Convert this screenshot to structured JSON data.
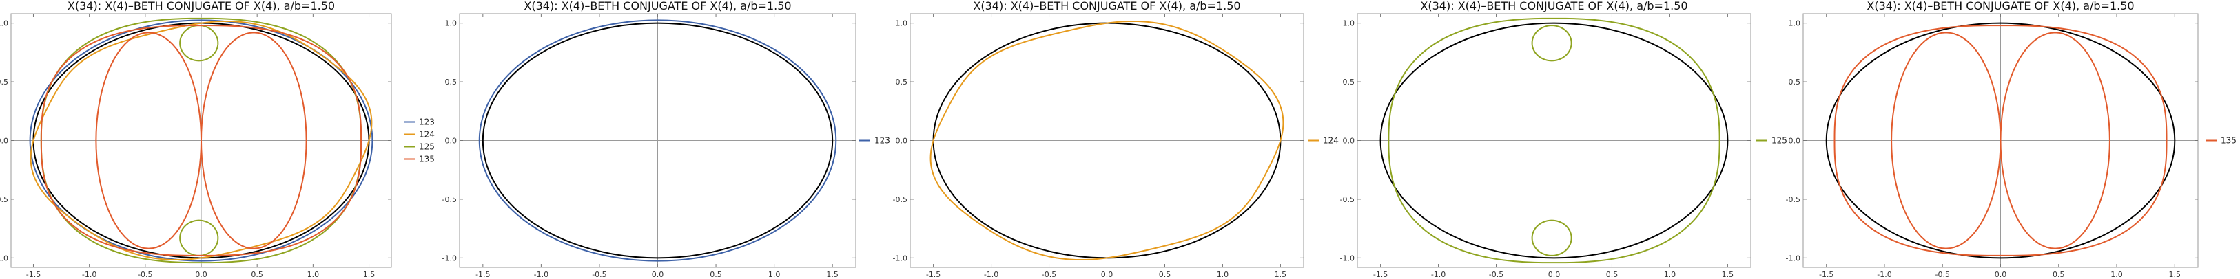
{
  "chart_data": [
    {
      "type": "line",
      "title": "X(34): X(4)–BETH CONJUGATE OF X(4), a/b=1.50",
      "xlabel": "",
      "ylabel": "",
      "xlim": [
        -1.7,
        1.7
      ],
      "ylim": [
        -1.08,
        1.08
      ],
      "x_ticks": [
        "-1.5",
        "-1.0",
        "-0.5",
        "0.0",
        "0.5",
        "1.0",
        "1.5"
      ],
      "y_ticks": [
        "-1.0",
        "-0.5",
        "0.0",
        "0.5",
        "1.0"
      ],
      "legend_position": "right",
      "reference_ellipse": {
        "a": 1.5,
        "b": 1.0,
        "color": "#000000"
      },
      "series": [
        {
          "name": "123",
          "color": "#3E62A8"
        },
        {
          "name": "124",
          "color": "#E69A1C"
        },
        {
          "name": "125",
          "color": "#8FA420"
        },
        {
          "name": "135",
          "color": "#E25B2C"
        }
      ]
    },
    {
      "type": "line",
      "title": "X(34): X(4)–BETH CONJUGATE OF X(4), a/b=1.50",
      "xlabel": "",
      "ylabel": "",
      "xlim": [
        -1.7,
        1.7
      ],
      "ylim": [
        -1.08,
        1.08
      ],
      "x_ticks": [
        "-1.5",
        "-1.0",
        "-0.5",
        "0.0",
        "0.5",
        "1.0",
        "1.5"
      ],
      "y_ticks": [
        "-1.0",
        "-0.5",
        "0.0",
        "0.5",
        "1.0"
      ],
      "legend_position": "right",
      "reference_ellipse": {
        "a": 1.5,
        "b": 1.0,
        "color": "#000000"
      },
      "series": [
        {
          "name": "123",
          "color": "#3E62A8"
        }
      ]
    },
    {
      "type": "line",
      "title": "X(34): X(4)–BETH CONJUGATE OF X(4), a/b=1.50",
      "xlabel": "",
      "ylabel": "",
      "xlim": [
        -1.7,
        1.7
      ],
      "ylim": [
        -1.08,
        1.08
      ],
      "x_ticks": [
        "-1.5",
        "-1.0",
        "-0.5",
        "0.0",
        "0.5",
        "1.0",
        "1.5"
      ],
      "y_ticks": [
        "-1.0",
        "-0.5",
        "0.0",
        "0.5",
        "1.0"
      ],
      "legend_position": "right",
      "reference_ellipse": {
        "a": 1.5,
        "b": 1.0,
        "color": "#000000"
      },
      "series": [
        {
          "name": "124",
          "color": "#E69A1C"
        }
      ]
    },
    {
      "type": "line",
      "title": "X(34): X(4)–BETH CONJUGATE OF X(4), a/b=1.50",
      "xlabel": "",
      "ylabel": "",
      "xlim": [
        -1.7,
        1.7
      ],
      "ylim": [
        -1.08,
        1.08
      ],
      "x_ticks": [
        "-1.5",
        "-1.0",
        "-0.5",
        "0.0",
        "0.5",
        "1.0",
        "1.5"
      ],
      "y_ticks": [
        "-1.0",
        "-0.5",
        "0.0",
        "0.5",
        "1.0"
      ],
      "legend_position": "right",
      "reference_ellipse": {
        "a": 1.5,
        "b": 1.0,
        "color": "#000000"
      },
      "series": [
        {
          "name": "125",
          "color": "#8FA420"
        }
      ]
    },
    {
      "type": "line",
      "title": "X(34): X(4)–BETH CONJUGATE OF X(4), a/b=1.50",
      "xlabel": "",
      "ylabel": "",
      "xlim": [
        -1.7,
        1.7
      ],
      "ylim": [
        -1.08,
        1.08
      ],
      "x_ticks": [
        "-1.5",
        "-1.0",
        "-0.5",
        "0.0",
        "0.5",
        "1.0",
        "1.5"
      ],
      "y_ticks": [
        "-1.0",
        "-0.5",
        "0.0",
        "0.5",
        "1.0"
      ],
      "legend_position": "right",
      "reference_ellipse": {
        "a": 1.5,
        "b": 1.0,
        "color": "#000000"
      },
      "series": [
        {
          "name": "135",
          "color": "#E25B2C"
        }
      ]
    }
  ]
}
